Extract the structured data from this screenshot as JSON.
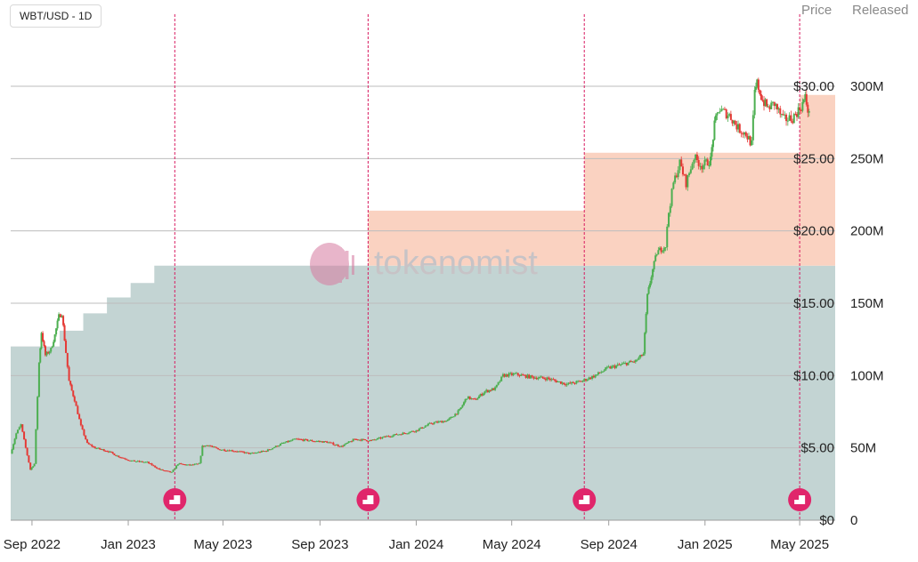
{
  "chart_data": {
    "type": "candlestick_with_stacked_area",
    "pair_label": "WBT/USD - 1D",
    "price_axis_title": "Price",
    "supply_axis_title": "Released",
    "watermark": "tokenomist",
    "price_ticks": [
      "$0",
      "$5.00",
      "$10.00",
      "$15.00",
      "$20.00",
      "$25.00",
      "$30.00"
    ],
    "price_tick_values": [
      0,
      5,
      10,
      15,
      20,
      25,
      30
    ],
    "supply_ticks": [
      "0",
      "50M",
      "100M",
      "150M",
      "200M",
      "250M",
      "300M"
    ],
    "supply_tick_values": [
      0,
      50000000,
      100000000,
      150000000,
      200000000,
      250000000,
      300000000
    ],
    "x_ticks": [
      {
        "label": "Sep 2022",
        "date": "2022-09-01"
      },
      {
        "label": "Jan 2023",
        "date": "2023-01-01"
      },
      {
        "label": "May 2023",
        "date": "2023-05-01"
      },
      {
        "label": "Sep 2023",
        "date": "2023-09-01"
      },
      {
        "label": "Jan 2024",
        "date": "2024-01-01"
      },
      {
        "label": "May 2024",
        "date": "2024-05-01"
      },
      {
        "label": "Sep 2024",
        "date": "2024-09-01"
      },
      {
        "label": "Jan 2025",
        "date": "2025-01-01"
      },
      {
        "label": "May 2025",
        "date": "2025-05-01"
      }
    ],
    "x_range": [
      "2022-08-05",
      "2025-06-15"
    ],
    "price_range": [
      0,
      30
    ],
    "supply_range": [
      0,
      300000000
    ],
    "colors": {
      "up": "#4caf50",
      "down": "#e53935",
      "base_allocation": "#c7c1c5",
      "gray_allocation": "#c3d4d3",
      "orange_allocation": "#fad2c1",
      "event_marker": "#e0266b",
      "event_line": "#d81b60",
      "grid": "#bdbdbd"
    },
    "supply_series": [
      {
        "color_key": "base_allocation",
        "points": [
          [
            "2022-08-05",
            120000000
          ],
          [
            "2025-06-15",
            120000000
          ]
        ]
      },
      {
        "color_key": "gray_allocation",
        "points": [
          [
            "2022-08-05",
            120000000
          ],
          [
            "2022-10-06",
            120000000
          ],
          [
            "2022-10-06",
            131000000
          ],
          [
            "2022-11-05",
            131000000
          ],
          [
            "2022-11-05",
            143000000
          ],
          [
            "2022-12-05",
            143000000
          ],
          [
            "2022-12-05",
            154000000
          ],
          [
            "2023-01-04",
            154000000
          ],
          [
            "2023-01-04",
            164000000
          ],
          [
            "2023-02-03",
            164000000
          ],
          [
            "2023-02-03",
            176000000
          ],
          [
            "2025-06-15",
            176000000
          ]
        ]
      },
      {
        "color_key": "orange_allocation",
        "points": [
          [
            "2023-11-01",
            176000000
          ],
          [
            "2023-11-01",
            214000000
          ],
          [
            "2024-08-01",
            214000000
          ],
          [
            "2024-08-01",
            254000000
          ],
          [
            "2025-05-01",
            254000000
          ],
          [
            "2025-05-01",
            294000000
          ],
          [
            "2025-06-15",
            294000000
          ],
          [
            "2025-06-15",
            176000000
          ]
        ]
      }
    ],
    "unlock_events": [
      "2023-03-01",
      "2023-11-01",
      "2024-08-01",
      "2025-05-01"
    ],
    "price_points": [
      [
        "2022-08-05",
        4.6
      ],
      [
        "2022-08-12",
        6.0
      ],
      [
        "2022-08-18",
        6.6
      ],
      [
        "2022-08-24",
        5.0
      ],
      [
        "2022-08-30",
        3.5
      ],
      [
        "2022-09-04",
        3.9
      ],
      [
        "2022-09-10",
        10.9
      ],
      [
        "2022-09-13",
        13.0
      ],
      [
        "2022-09-18",
        11.4
      ],
      [
        "2022-09-25",
        11.8
      ],
      [
        "2022-09-30",
        12.8
      ],
      [
        "2022-10-05",
        14.1
      ],
      [
        "2022-10-09",
        14.3
      ],
      [
        "2022-10-14",
        11.6
      ],
      [
        "2022-10-18",
        9.6
      ],
      [
        "2022-10-25",
        8.3
      ],
      [
        "2022-11-02",
        6.5
      ],
      [
        "2022-11-10",
        5.3
      ],
      [
        "2022-11-20",
        5.0
      ],
      [
        "2022-12-05",
        4.8
      ],
      [
        "2022-12-20",
        4.4
      ],
      [
        "2023-01-05",
        4.1
      ],
      [
        "2023-01-25",
        4.0
      ],
      [
        "2023-02-10",
        3.5
      ],
      [
        "2023-02-25",
        3.3
      ],
      [
        "2023-03-05",
        3.9
      ],
      [
        "2023-03-20",
        3.8
      ],
      [
        "2023-04-01",
        3.9
      ],
      [
        "2023-04-05",
        5.1
      ],
      [
        "2023-04-12",
        5.2
      ],
      [
        "2023-04-25",
        4.9
      ],
      [
        "2023-05-15",
        4.8
      ],
      [
        "2023-06-05",
        4.6
      ],
      [
        "2023-06-25",
        4.8
      ],
      [
        "2023-07-15",
        5.3
      ],
      [
        "2023-08-01",
        5.6
      ],
      [
        "2023-08-20",
        5.5
      ],
      [
        "2023-09-10",
        5.4
      ],
      [
        "2023-09-28",
        5.1
      ],
      [
        "2023-10-15",
        5.6
      ],
      [
        "2023-11-05",
        5.5
      ],
      [
        "2023-11-25",
        5.8
      ],
      [
        "2023-12-15",
        6.0
      ],
      [
        "2024-01-01",
        6.2
      ],
      [
        "2024-01-20",
        6.7
      ],
      [
        "2024-02-10",
        6.9
      ],
      [
        "2024-02-25",
        7.6
      ],
      [
        "2024-03-05",
        8.5
      ],
      [
        "2024-03-15",
        8.3
      ],
      [
        "2024-03-28",
        8.9
      ],
      [
        "2024-04-10",
        9.1
      ],
      [
        "2024-04-20",
        10.0
      ],
      [
        "2024-05-05",
        10.1
      ],
      [
        "2024-05-25",
        9.9
      ],
      [
        "2024-06-15",
        9.8
      ],
      [
        "2024-07-10",
        9.4
      ],
      [
        "2024-07-28",
        9.6
      ],
      [
        "2024-08-15",
        10.0
      ],
      [
        "2024-08-30",
        10.5
      ],
      [
        "2024-09-20",
        10.8
      ],
      [
        "2024-10-05",
        11.0
      ],
      [
        "2024-10-15",
        11.5
      ],
      [
        "2024-10-20",
        15.5
      ],
      [
        "2024-10-25",
        16.9
      ],
      [
        "2024-11-01",
        18.5
      ],
      [
        "2024-11-12",
        19.0
      ],
      [
        "2024-11-16",
        21.3
      ],
      [
        "2024-11-22",
        23.3
      ],
      [
        "2024-11-30",
        24.7
      ],
      [
        "2024-12-08",
        23.3
      ],
      [
        "2024-12-18",
        25.1
      ],
      [
        "2024-12-28",
        24.5
      ],
      [
        "2025-01-08",
        24.9
      ],
      [
        "2025-01-13",
        27.3
      ],
      [
        "2025-01-18",
        28.4
      ],
      [
        "2025-02-01",
        28.0
      ],
      [
        "2025-02-12",
        27.1
      ],
      [
        "2025-02-22",
        26.7
      ],
      [
        "2025-03-01",
        26.0
      ],
      [
        "2025-03-05",
        29.5
      ],
      [
        "2025-03-08",
        30.2
      ],
      [
        "2025-03-15",
        29.0
      ],
      [
        "2025-03-22",
        28.5
      ],
      [
        "2025-03-30",
        28.8
      ],
      [
        "2025-04-10",
        27.7
      ],
      [
        "2025-04-22",
        27.8
      ],
      [
        "2025-05-03",
        28.6
      ],
      [
        "2025-05-08",
        29.2
      ],
      [
        "2025-05-13",
        28.0
      ]
    ]
  }
}
